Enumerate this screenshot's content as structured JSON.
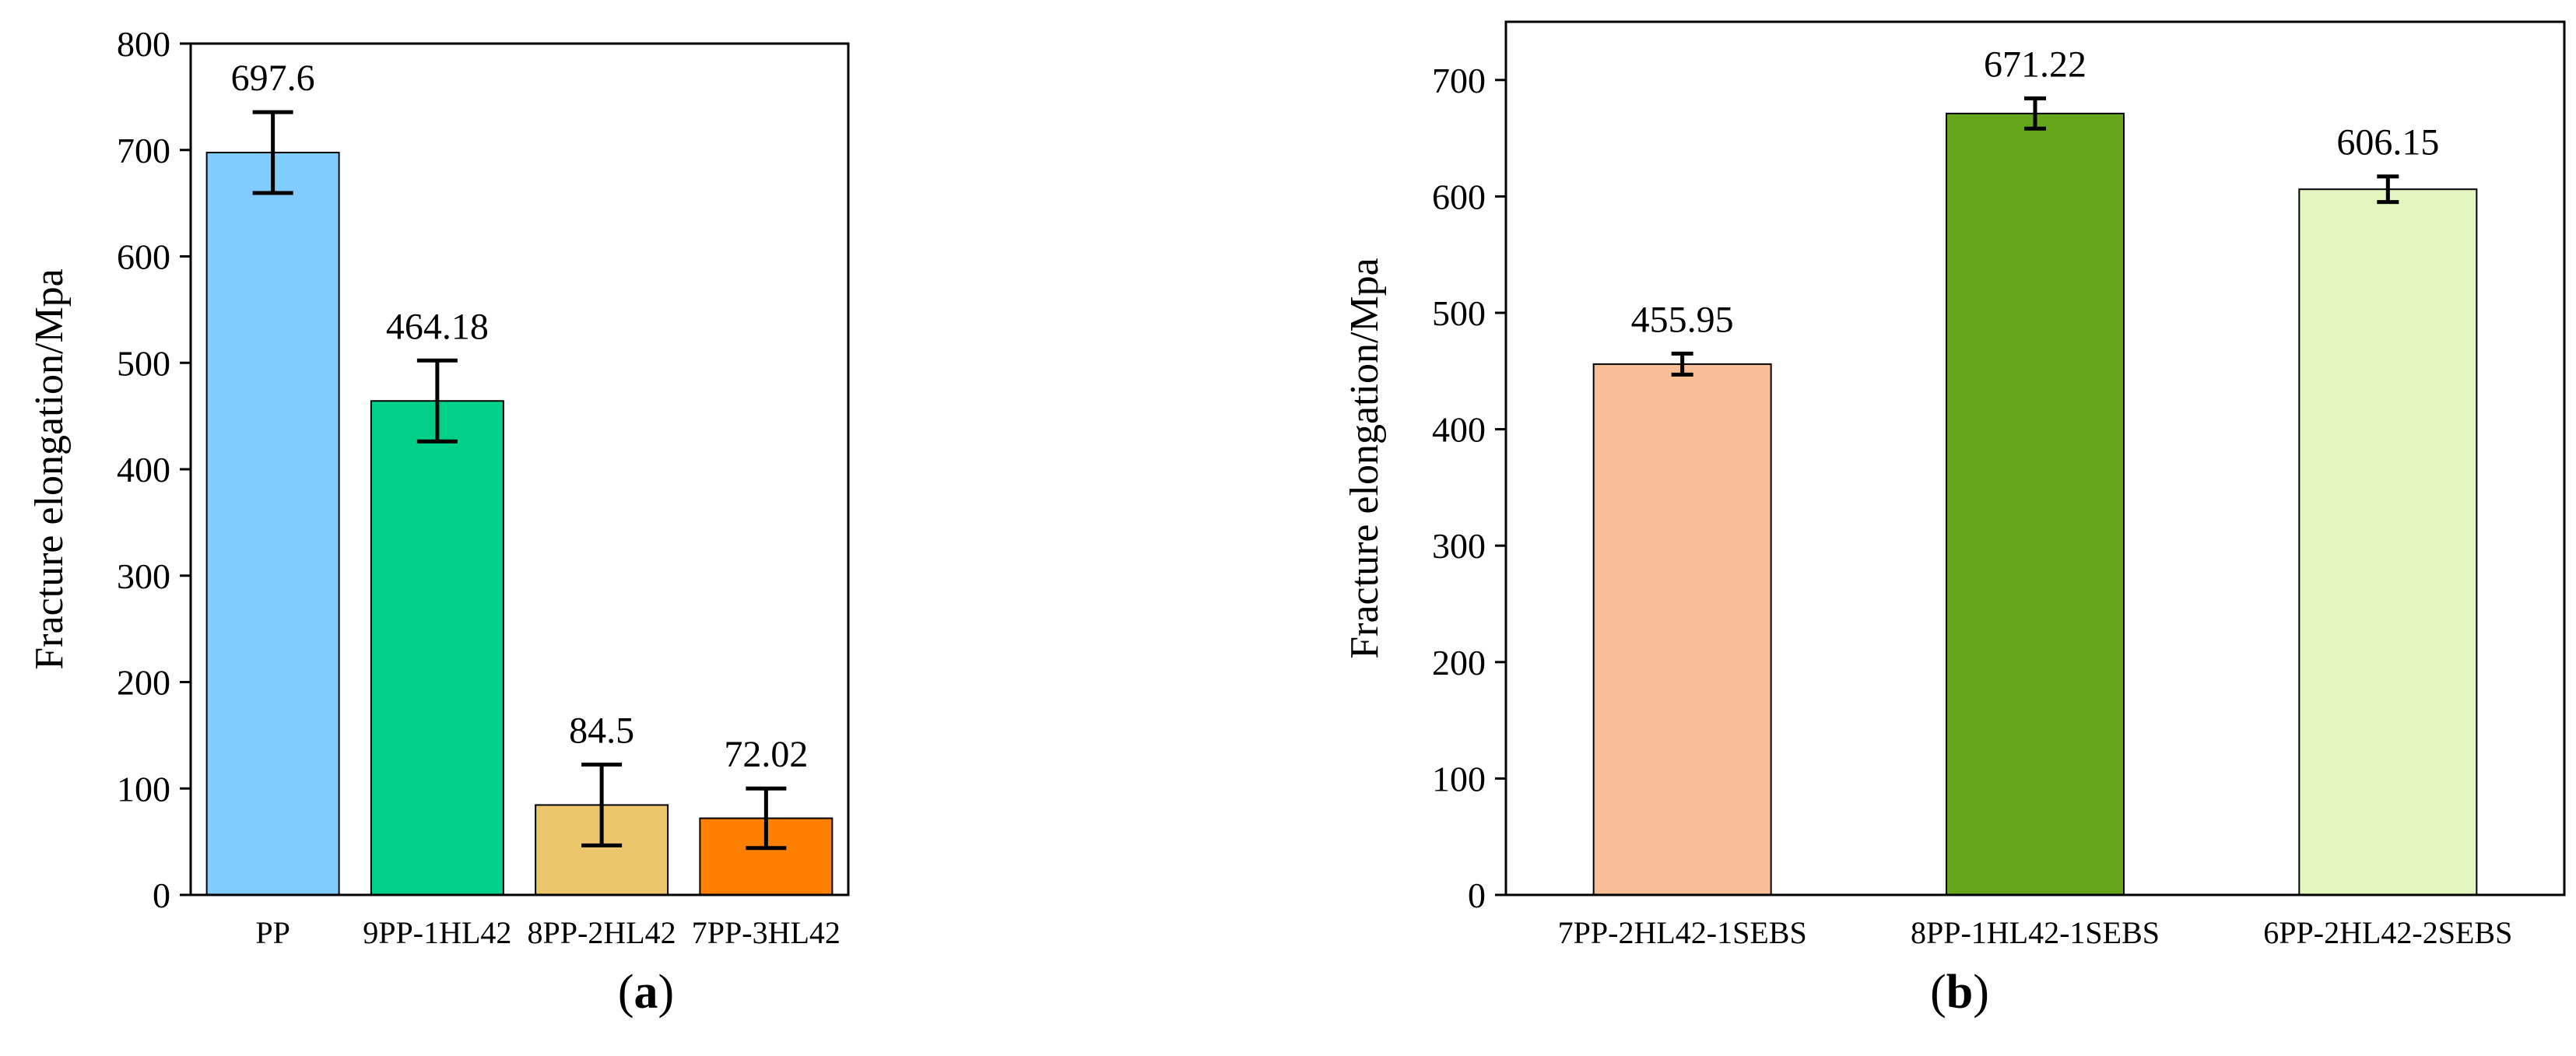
{
  "chart_data": [
    {
      "type": "bar",
      "panel_label": "a",
      "ylabel": "Fracture elongation/Mpa",
      "ylim": [
        0,
        800
      ],
      "yticks": [
        0,
        100,
        200,
        300,
        400,
        500,
        600,
        700,
        800
      ],
      "categories": [
        "PP",
        "9PP-1HL42",
        "8PP-2HL42",
        "7PP-3HL42"
      ],
      "values": [
        697.6,
        464.18,
        84.5,
        72.02
      ],
      "value_labels": [
        "697.6",
        "464.18",
        "84.5",
        "72.02"
      ],
      "error": [
        38,
        38,
        38,
        28
      ],
      "colors": [
        "#80CCFF",
        "#00D08A",
        "#EBC66B",
        "#FF8000"
      ],
      "grid": false
    },
    {
      "type": "bar",
      "panel_label": "b",
      "ylabel": "Fracture elongation/Mpa",
      "ylim": [
        0,
        750
      ],
      "yticks": [
        0,
        100,
        200,
        300,
        400,
        500,
        600,
        700
      ],
      "categories": [
        "7PP-2HL42-1SEBS",
        "8PP-1HL42-1SEBS",
        "6PP-2HL42-2SEBS"
      ],
      "values": [
        455.95,
        671.22,
        606.15
      ],
      "value_labels": [
        "455.95",
        "671.22",
        "606.15"
      ],
      "error": [
        9,
        13,
        11
      ],
      "colors": [
        "#F8BE96",
        "#66A61A",
        "#E2F6BE"
      ],
      "grid": false
    }
  ]
}
